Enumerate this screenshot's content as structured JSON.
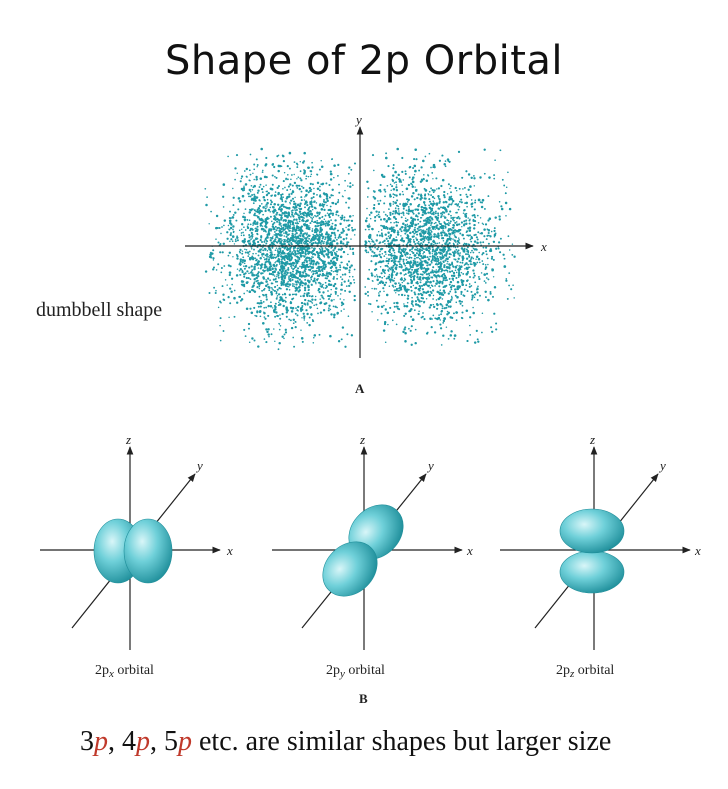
{
  "title": "Shape of 2p Orbital",
  "panel_a": {
    "label": "A",
    "note": "dumbbell shape",
    "axis_x": "x",
    "axis_y": "y"
  },
  "panel_b": {
    "label": "B",
    "axis_x": "x",
    "axis_y": "y",
    "axis_z": "z",
    "orbitals": [
      {
        "prefix": "2p",
        "sub": "x",
        "suffix": " orbital"
      },
      {
        "prefix": "2p",
        "sub": "y",
        "suffix": " orbital"
      },
      {
        "prefix": "2p",
        "sub": "z",
        "suffix": " orbital"
      }
    ]
  },
  "caption": {
    "n1": "3",
    "p1": "p",
    "sep1": ", ",
    "n2": "4",
    "p2": "p",
    "sep2": ", ",
    "n3": "5",
    "p3": "p",
    "rest": " etc. are similar shapes but larger size"
  },
  "colors": {
    "dots": "#1f9aa6",
    "lobe_light": "#bfeef2",
    "lobe_mid": "#56c4cf",
    "lobe_dark": "#1e8e9a",
    "accent": "#c0392b"
  }
}
